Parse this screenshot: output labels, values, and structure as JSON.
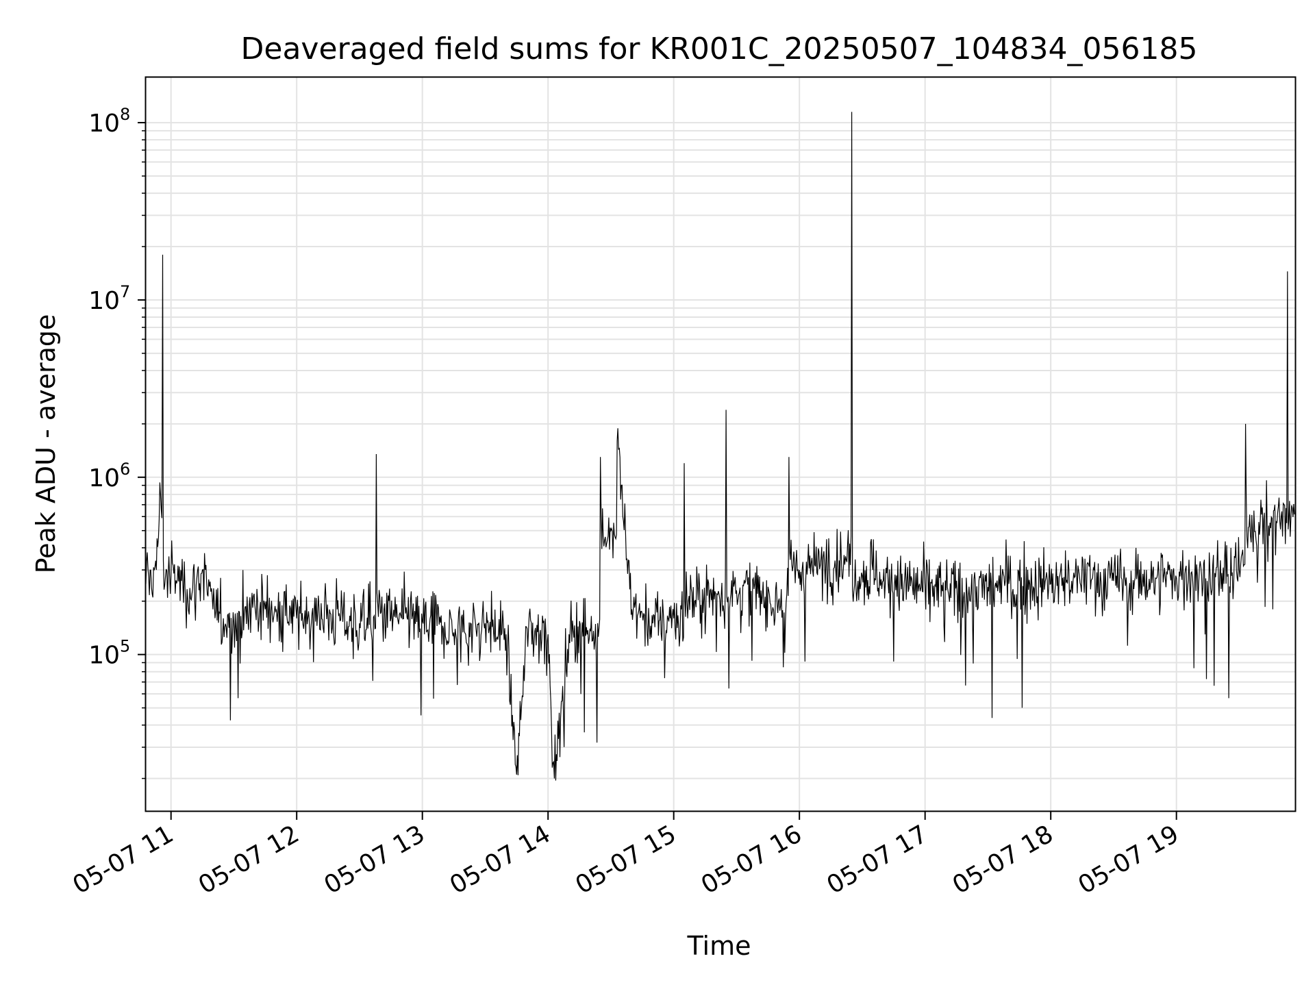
{
  "chart_data": {
    "type": "line",
    "title": "Deaveraged field sums for KR001C_20250507_104834_056185",
    "xlabel": "Time",
    "ylabel": "Peak ADU - average",
    "x_axis": {
      "kind": "datetime",
      "range": [
        "2025-05-07 10:48",
        "2025-05-07 19:57"
      ],
      "tick_labels": [
        "05-07 11",
        "05-07 12",
        "05-07 13",
        "05-07 14",
        "05-07 15",
        "05-07 16",
        "05-07 17",
        "05-07 18",
        "05-07 19"
      ],
      "tick_values": [
        "2025-05-07 11:00",
        "2025-05-07 12:00",
        "2025-05-07 13:00",
        "2025-05-07 14:00",
        "2025-05-07 15:00",
        "2025-05-07 16:00",
        "2025-05-07 17:00",
        "2025-05-07 18:00",
        "2025-05-07 19:00"
      ]
    },
    "y_axis": {
      "scale": "log",
      "ylim": [
        13000,
        180000000
      ],
      "major_ticks": [
        {
          "value": 100000,
          "base": "10",
          "exp": "5"
        },
        {
          "value": 1000000,
          "base": "10",
          "exp": "6"
        },
        {
          "value": 10000000,
          "base": "10",
          "exp": "7"
        },
        {
          "value": 100000000,
          "base": "10",
          "exp": "8"
        }
      ]
    },
    "grid": "major and minor",
    "line_color": "#000000",
    "series": [
      {
        "x": [
          "2025-05-07 10:48",
          "2025-05-07 10:53",
          "2025-05-07 10:55",
          "2025-05-07 10:56",
          "2025-05-07 11:00",
          "2025-05-07 11:05",
          "2025-05-07 11:10",
          "2025-05-07 11:15",
          "2025-05-07 11:20",
          "2025-05-07 11:25",
          "2025-05-07 11:30",
          "2025-05-07 11:35",
          "2025-05-07 11:40",
          "2025-05-07 11:45",
          "2025-05-07 11:50",
          "2025-05-07 12:00",
          "2025-05-07 12:10",
          "2025-05-07 12:20",
          "2025-05-07 12:30",
          "2025-05-07 12:38",
          "2025-05-07 12:40",
          "2025-05-07 12:50",
          "2025-05-07 13:00",
          "2025-05-07 13:10",
          "2025-05-07 13:20",
          "2025-05-07 13:30",
          "2025-05-07 13:40",
          "2025-05-07 13:45",
          "2025-05-07 13:50",
          "2025-05-07 14:00",
          "2025-05-07 14:03",
          "2025-05-07 14:10",
          "2025-05-07 14:20",
          "2025-05-07 14:25",
          "2025-05-07 14:30",
          "2025-05-07 14:33",
          "2025-05-07 14:40",
          "2025-05-07 14:50",
          "2025-05-07 15:00",
          "2025-05-07 15:05",
          "2025-05-07 15:10",
          "2025-05-07 15:20",
          "2025-05-07 15:25",
          "2025-05-07 15:30",
          "2025-05-07 15:40",
          "2025-05-07 15:50",
          "2025-05-07 15:55",
          "2025-05-07 16:00",
          "2025-05-07 16:10",
          "2025-05-07 16:20",
          "2025-05-07 16:25",
          "2025-05-07 16:30",
          "2025-05-07 16:35",
          "2025-05-07 16:40",
          "2025-05-07 16:50",
          "2025-05-07 17:00",
          "2025-05-07 17:10",
          "2025-05-07 17:20",
          "2025-05-07 17:30",
          "2025-05-07 17:40",
          "2025-05-07 17:50",
          "2025-05-07 18:00",
          "2025-05-07 18:10",
          "2025-05-07 18:20",
          "2025-05-07 18:30",
          "2025-05-07 18:40",
          "2025-05-07 18:50",
          "2025-05-07 19:00",
          "2025-05-07 19:10",
          "2025-05-07 19:20",
          "2025-05-07 19:30",
          "2025-05-07 19:33",
          "2025-05-07 19:40",
          "2025-05-07 19:50",
          "2025-05-07 19:53",
          "2025-05-07 19:57"
        ],
        "values": [
          250000,
          300000,
          800000,
          18000000,
          280000,
          260000,
          220000,
          300000,
          180000,
          160000,
          150000,
          170000,
          190000,
          180000,
          175000,
          160000,
          170000,
          165000,
          150000,
          1350000,
          170000,
          160000,
          155000,
          140000,
          135000,
          150000,
          130000,
          21000,
          140000,
          130000,
          20000,
          130000,
          140000,
          1300000,
          500000,
          1600000,
          180000,
          150000,
          160000,
          1200000,
          200000,
          220000,
          2400000,
          230000,
          220000,
          200000,
          1300000,
          300000,
          320000,
          350000,
          115000000,
          280000,
          300000,
          260000,
          250000,
          240000,
          230000,
          230000,
          240000,
          250000,
          250000,
          250000,
          260000,
          270000,
          260000,
          260000,
          270000,
          270000,
          280000,
          280000,
          300000,
          2000000,
          550000,
          600000,
          14500000,
          600000
        ]
      }
    ]
  }
}
